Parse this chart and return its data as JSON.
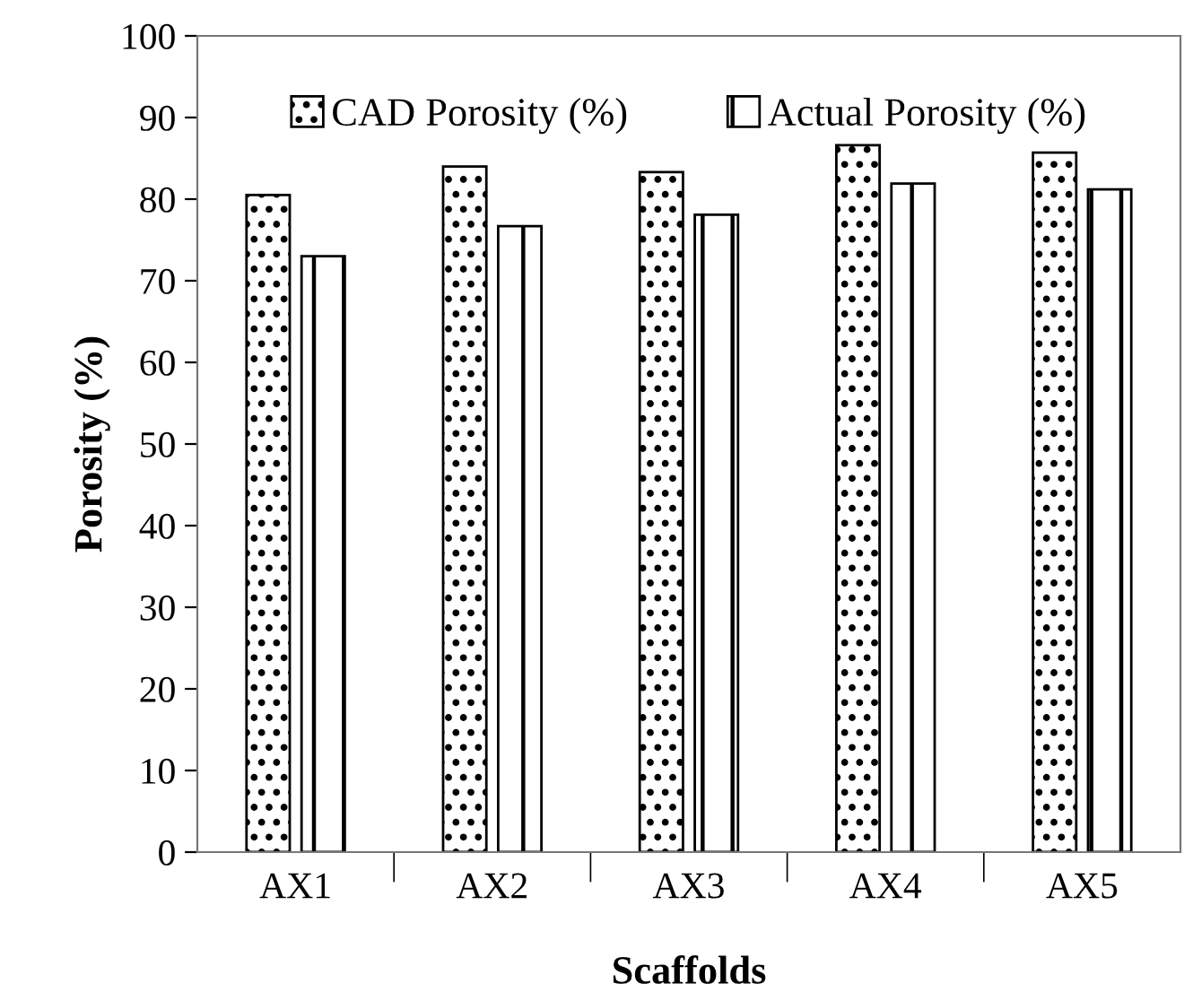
{
  "chart_data": {
    "type": "bar",
    "xlabel": "Scaffolds",
    "ylabel": "Porosity (%)",
    "categories": [
      "AX1",
      "AX2",
      "AX3",
      "AX4",
      "AX5"
    ],
    "series": [
      {
        "name": "CAD Porosity (%)",
        "color": "#000000",
        "values": [
          80.5,
          84.0,
          83.3,
          86.6,
          85.7
        ]
      },
      {
        "name": "Actual Porosity (%)",
        "color": "#000000",
        "values": [
          73.0,
          76.7,
          78.1,
          81.9,
          81.2
        ]
      }
    ],
    "ylim": [
      0,
      100
    ],
    "yticks": [
      0,
      10,
      20,
      30,
      40,
      50,
      60,
      70,
      80,
      90,
      100
    ],
    "grid": false,
    "legend": "top"
  }
}
